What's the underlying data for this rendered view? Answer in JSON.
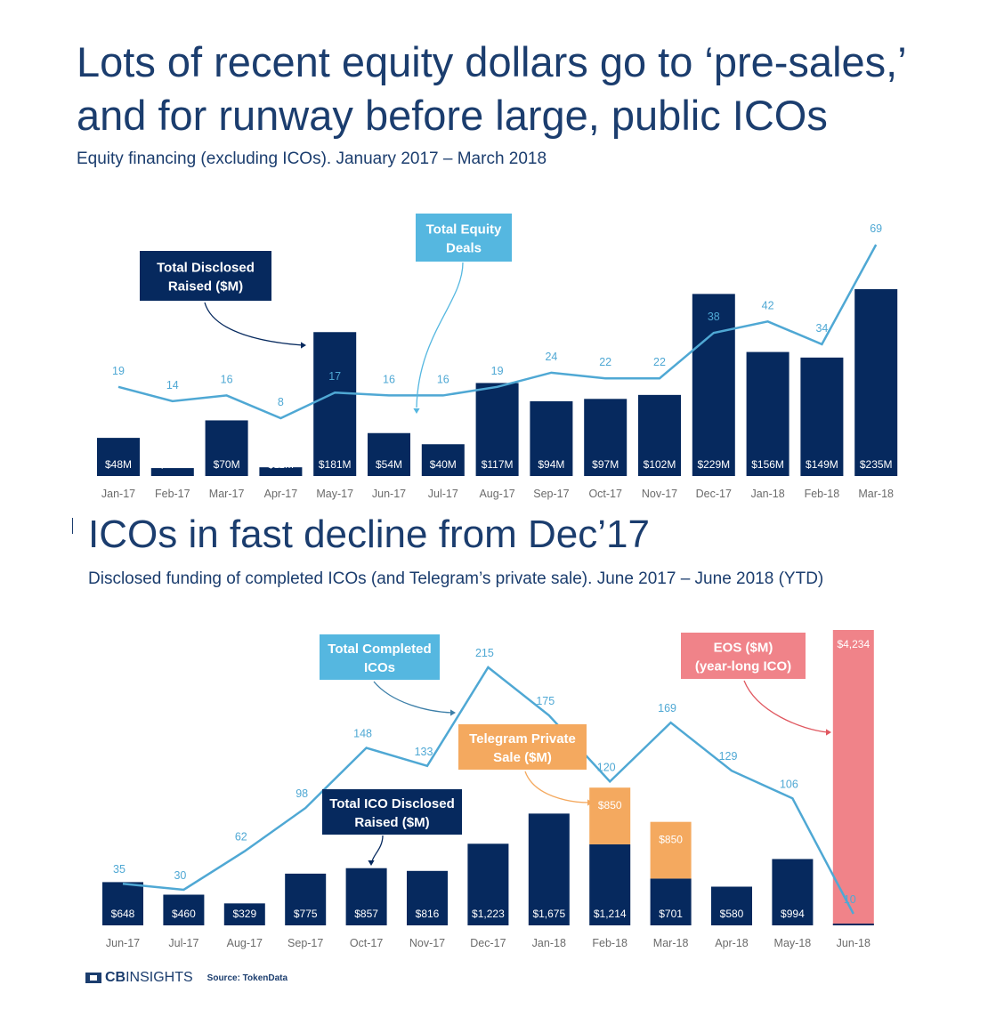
{
  "header": {
    "title": "Lots of recent equity dollars go to ‘pre-sales,’ and for runway before large, public ICOs",
    "subtitle": "Equity financing (excluding ICOs). January 2017 – March 2018"
  },
  "section2": {
    "title": "ICOs in fast decline from Dec’17",
    "subtitle": "Disclosed funding of completed ICOs (and Telegram’s private sale). June 2017 – June 2018 (YTD)"
  },
  "footer": {
    "logo_bold": "CB",
    "logo_rest": "INSIGHTS",
    "source": "Source: TokenData"
  },
  "colors": {
    "navy": "#06295e",
    "line": "#4fa8d4",
    "orange": "#f4a95f",
    "pink": "#f08389",
    "text": "#1b3d6e"
  },
  "chart_data": [
    {
      "type": "bar",
      "categories": [
        "Jan-17",
        "Feb-17",
        "Mar-17",
        "Apr-17",
        "May-17",
        "Jun-17",
        "Jul-17",
        "Aug-17",
        "Sep-17",
        "Oct-17",
        "Nov-17",
        "Dec-17",
        "Jan-18",
        "Feb-18",
        "Mar-18"
      ],
      "series": [
        {
          "name": "Total Disclosed Raised ($M)",
          "kind": "bar",
          "values": [
            48,
            10,
            70,
            11,
            181,
            54,
            40,
            117,
            94,
            97,
            102,
            229,
            156,
            149,
            235
          ],
          "labels": [
            "$48M",
            "$10M",
            "$70M",
            "$11M",
            "$181M",
            "$54M",
            "$40M",
            "$117M",
            "$94M",
            "$97M",
            "$102M",
            "$229M",
            "$156M",
            "$149M",
            "$235M"
          ]
        },
        {
          "name": "Total Equity Deals",
          "kind": "line",
          "values": [
            19,
            14,
            16,
            8,
            17,
            16,
            16,
            19,
            24,
            22,
            22,
            38,
            42,
            34,
            69
          ]
        }
      ],
      "callouts": {
        "bars": "Total Disclosed Raised ($M)",
        "line": "Total Equity Deals"
      }
    },
    {
      "type": "bar",
      "categories": [
        "Jun-17",
        "Jul-17",
        "Aug-17",
        "Sep-17",
        "Oct-17",
        "Nov-17",
        "Dec-17",
        "Jan-18",
        "Feb-18",
        "Mar-18",
        "Apr-18",
        "May-18",
        "Jun-18"
      ],
      "series": [
        {
          "name": "Total ICO Disclosed Raised ($M)",
          "kind": "bar",
          "values": [
            648,
            460,
            329,
            775,
            857,
            816,
            1223,
            1675,
            1214,
            701,
            580,
            994,
            10
          ],
          "labels": [
            "$648",
            "$460",
            "$329",
            "$775",
            "$857",
            "$816",
            "$1,223",
            "$1,675",
            "$1,214",
            "$701",
            "$580",
            "$994",
            ""
          ]
        },
        {
          "name": "Telegram Private Sale ($M)",
          "kind": "bar-stack",
          "values": [
            0,
            0,
            0,
            0,
            0,
            0,
            0,
            0,
            850,
            850,
            0,
            0,
            0
          ],
          "labels": [
            "",
            "",
            "",
            "",
            "",
            "",
            "",
            "",
            "$850",
            "$850",
            "",
            "",
            ""
          ]
        },
        {
          "name": "EOS ($M) (year-long ICO)",
          "kind": "bar-stack",
          "values": [
            0,
            0,
            0,
            0,
            0,
            0,
            0,
            0,
            0,
            0,
            0,
            0,
            4234
          ],
          "labels": [
            "",
            "",
            "",
            "",
            "",
            "",
            "",
            "",
            "",
            "",
            "",
            "",
            "$4,234"
          ]
        },
        {
          "name": "Total Completed ICOs",
          "kind": "line",
          "values": [
            35,
            30,
            62,
            98,
            148,
            133,
            215,
            175,
            120,
            169,
            129,
            106,
            10
          ]
        }
      ],
      "callouts": {
        "line": "Total Completed ICOs",
        "telegram": "Telegram Private Sale ($M)",
        "bars": "Total ICO Disclosed Raised ($M)",
        "eos": "EOS ($M) (year-long ICO)"
      }
    }
  ]
}
